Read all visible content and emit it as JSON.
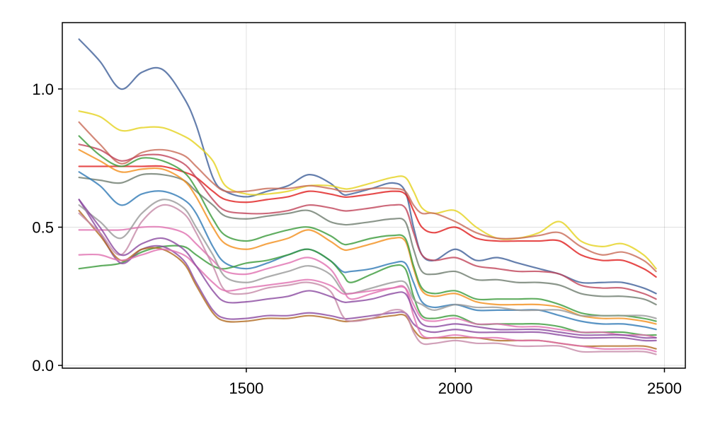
{
  "chart_data": {
    "type": "line",
    "title": "",
    "xlabel": "",
    "ylabel": "",
    "xlim": [
      1060,
      2550
    ],
    "ylim": [
      -0.01,
      1.24
    ],
    "grid": true,
    "legend": "none",
    "x_ticks": [
      {
        "value": 1500,
        "label": "1500"
      },
      {
        "value": 2000,
        "label": "2000"
      },
      {
        "value": 2500,
        "label": "2500"
      }
    ],
    "y_ticks": [
      {
        "value": 0.0,
        "label": "0.0"
      },
      {
        "value": 0.5,
        "label": "0.5"
      },
      {
        "value": 1.0,
        "label": "1.0"
      }
    ],
    "x": [
      1100,
      1150,
      1200,
      1250,
      1300,
      1350,
      1380,
      1420,
      1450,
      1500,
      1550,
      1600,
      1650,
      1700,
      1730,
      1750,
      1800,
      1850,
      1880,
      1900,
      1920,
      1950,
      2000,
      2050,
      2100,
      2150,
      2200,
      2250,
      2300,
      2350,
      2400,
      2450,
      2480
    ],
    "series": [
      {
        "color": "#3f5f99",
        "values": [
          1.18,
          1.1,
          1.0,
          1.06,
          1.07,
          0.97,
          0.87,
          0.68,
          0.63,
          0.61,
          0.63,
          0.65,
          0.69,
          0.66,
          0.62,
          0.62,
          0.64,
          0.66,
          0.63,
          0.5,
          0.4,
          0.38,
          0.42,
          0.38,
          0.39,
          0.37,
          0.35,
          0.33,
          0.3,
          0.3,
          0.3,
          0.28,
          0.26
        ]
      },
      {
        "color": "#e5d21e",
        "values": [
          0.92,
          0.9,
          0.85,
          0.86,
          0.86,
          0.83,
          0.8,
          0.74,
          0.65,
          0.62,
          0.62,
          0.63,
          0.65,
          0.65,
          0.64,
          0.64,
          0.66,
          0.68,
          0.68,
          0.63,
          0.57,
          0.55,
          0.56,
          0.5,
          0.46,
          0.46,
          0.48,
          0.52,
          0.45,
          0.43,
          0.44,
          0.4,
          0.35
        ]
      },
      {
        "color": "#c86a56",
        "values": [
          0.88,
          0.8,
          0.73,
          0.77,
          0.78,
          0.76,
          0.72,
          0.66,
          0.63,
          0.63,
          0.64,
          0.64,
          0.65,
          0.64,
          0.63,
          0.63,
          0.64,
          0.64,
          0.63,
          0.58,
          0.55,
          0.55,
          0.52,
          0.48,
          0.46,
          0.46,
          0.47,
          0.48,
          0.43,
          0.4,
          0.41,
          0.38,
          0.34
        ]
      },
      {
        "color": "#e01e1e",
        "values": [
          0.72,
          0.72,
          0.72,
          0.72,
          0.72,
          0.7,
          0.68,
          0.63,
          0.6,
          0.59,
          0.6,
          0.61,
          0.63,
          0.62,
          0.61,
          0.61,
          0.62,
          0.63,
          0.62,
          0.56,
          0.5,
          0.48,
          0.5,
          0.46,
          0.45,
          0.45,
          0.45,
          0.45,
          0.4,
          0.38,
          0.38,
          0.35,
          0.32
        ]
      },
      {
        "color": "#c0455a",
        "values": [
          0.8,
          0.78,
          0.74,
          0.76,
          0.76,
          0.73,
          0.68,
          0.6,
          0.56,
          0.55,
          0.55,
          0.56,
          0.58,
          0.57,
          0.56,
          0.56,
          0.57,
          0.58,
          0.57,
          0.48,
          0.4,
          0.38,
          0.39,
          0.36,
          0.35,
          0.34,
          0.34,
          0.33,
          0.29,
          0.28,
          0.28,
          0.26,
          0.24
        ]
      },
      {
        "color": "#6e7c6e",
        "values": [
          0.68,
          0.67,
          0.66,
          0.69,
          0.69,
          0.67,
          0.63,
          0.58,
          0.54,
          0.53,
          0.54,
          0.55,
          0.56,
          0.52,
          0.51,
          0.51,
          0.52,
          0.53,
          0.52,
          0.42,
          0.34,
          0.33,
          0.34,
          0.31,
          0.31,
          0.3,
          0.3,
          0.29,
          0.26,
          0.25,
          0.25,
          0.24,
          0.22
        ]
      },
      {
        "color": "#2f79b5",
        "values": [
          0.7,
          0.65,
          0.58,
          0.62,
          0.63,
          0.6,
          0.55,
          0.43,
          0.37,
          0.35,
          0.37,
          0.4,
          0.42,
          0.38,
          0.34,
          0.34,
          0.35,
          0.37,
          0.37,
          0.3,
          0.23,
          0.21,
          0.22,
          0.2,
          0.2,
          0.2,
          0.2,
          0.18,
          0.16,
          0.15,
          0.15,
          0.14,
          0.13
        ]
      },
      {
        "color": "#f28e1c",
        "values": [
          0.78,
          0.74,
          0.7,
          0.71,
          0.71,
          0.67,
          0.61,
          0.5,
          0.44,
          0.42,
          0.44,
          0.46,
          0.49,
          0.45,
          0.42,
          0.42,
          0.44,
          0.46,
          0.45,
          0.35,
          0.27,
          0.25,
          0.26,
          0.23,
          0.22,
          0.22,
          0.22,
          0.21,
          0.18,
          0.17,
          0.17,
          0.16,
          0.15
        ]
      },
      {
        "color": "#3a9a3a",
        "values": [
          0.83,
          0.76,
          0.72,
          0.75,
          0.74,
          0.7,
          0.64,
          0.53,
          0.47,
          0.45,
          0.47,
          0.49,
          0.5,
          0.47,
          0.44,
          0.44,
          0.46,
          0.47,
          0.46,
          0.36,
          0.28,
          0.26,
          0.27,
          0.24,
          0.24,
          0.24,
          0.24,
          0.22,
          0.19,
          0.18,
          0.18,
          0.17,
          0.16
        ]
      },
      {
        "color": "#3a9a3a",
        "values": [
          0.35,
          0.36,
          0.37,
          0.41,
          0.43,
          0.43,
          0.4,
          0.36,
          0.35,
          0.37,
          0.38,
          0.4,
          0.42,
          0.38,
          0.33,
          0.3,
          0.33,
          0.36,
          0.35,
          0.25,
          0.18,
          0.17,
          0.18,
          0.15,
          0.15,
          0.15,
          0.15,
          0.14,
          0.12,
          0.12,
          0.12,
          0.11,
          0.11
        ]
      },
      {
        "color": "#8b4aa0",
        "values": [
          0.6,
          0.48,
          0.37,
          0.42,
          0.43,
          0.38,
          0.3,
          0.2,
          0.17,
          0.17,
          0.18,
          0.18,
          0.19,
          0.18,
          0.17,
          0.17,
          0.18,
          0.19,
          0.19,
          0.15,
          0.13,
          0.12,
          0.13,
          0.12,
          0.12,
          0.12,
          0.12,
          0.11,
          0.1,
          0.1,
          0.1,
          0.09,
          0.09
        ]
      },
      {
        "color": "#b06a20",
        "values": [
          0.56,
          0.47,
          0.38,
          0.42,
          0.42,
          0.37,
          0.29,
          0.19,
          0.16,
          0.16,
          0.17,
          0.17,
          0.18,
          0.17,
          0.16,
          0.16,
          0.17,
          0.18,
          0.18,
          0.13,
          0.1,
          0.1,
          0.1,
          0.1,
          0.09,
          0.09,
          0.09,
          0.08,
          0.07,
          0.07,
          0.07,
          0.07,
          0.06
        ]
      },
      {
        "color": "#e070b0",
        "values": [
          0.49,
          0.49,
          0.49,
          0.5,
          0.5,
          0.48,
          0.44,
          0.38,
          0.34,
          0.33,
          0.35,
          0.37,
          0.39,
          0.35,
          0.28,
          0.24,
          0.26,
          0.28,
          0.28,
          0.18,
          0.11,
          0.1,
          0.11,
          0.1,
          0.1,
          0.09,
          0.09,
          0.08,
          0.07,
          0.06,
          0.06,
          0.06,
          0.05
        ]
      },
      {
        "color": "#c58aa8",
        "values": [
          0.55,
          0.48,
          0.4,
          0.52,
          0.58,
          0.55,
          0.48,
          0.36,
          0.27,
          0.26,
          0.28,
          0.29,
          0.3,
          0.27,
          0.18,
          0.16,
          0.17,
          0.2,
          0.19,
          0.12,
          0.08,
          0.08,
          0.09,
          0.08,
          0.08,
          0.07,
          0.07,
          0.07,
          0.05,
          0.05,
          0.05,
          0.05,
          0.04
        ]
      },
      {
        "color": "#999999",
        "values": [
          0.58,
          0.52,
          0.46,
          0.55,
          0.6,
          0.57,
          0.5,
          0.4,
          0.32,
          0.3,
          0.32,
          0.34,
          0.36,
          0.33,
          0.27,
          0.26,
          0.28,
          0.3,
          0.3,
          0.24,
          0.22,
          0.2,
          0.22,
          0.21,
          0.21,
          0.2,
          0.2,
          0.2,
          0.18,
          0.18,
          0.18,
          0.18,
          0.17
        ]
      },
      {
        "color": "#e070b0",
        "values": [
          0.4,
          0.4,
          0.38,
          0.4,
          0.42,
          0.4,
          0.36,
          0.3,
          0.27,
          0.28,
          0.29,
          0.3,
          0.31,
          0.29,
          0.26,
          0.26,
          0.27,
          0.28,
          0.28,
          0.22,
          0.17,
          0.16,
          0.17,
          0.15,
          0.15,
          0.14,
          0.14,
          0.13,
          0.12,
          0.12,
          0.11,
          0.11,
          0.1
        ]
      },
      {
        "color": "#8b4aa0",
        "values": [
          0.6,
          0.5,
          0.4,
          0.44,
          0.46,
          0.42,
          0.36,
          0.27,
          0.23,
          0.23,
          0.24,
          0.25,
          0.27,
          0.25,
          0.23,
          0.23,
          0.24,
          0.26,
          0.26,
          0.2,
          0.15,
          0.14,
          0.15,
          0.14,
          0.13,
          0.13,
          0.13,
          0.12,
          0.11,
          0.11,
          0.11,
          0.1,
          0.1
        ]
      }
    ]
  }
}
